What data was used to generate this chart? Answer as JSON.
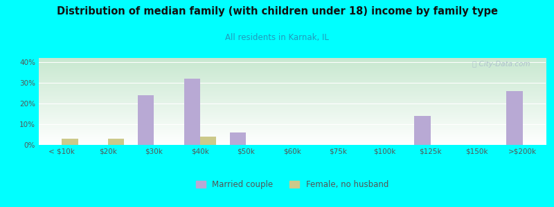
{
  "title": "Distribution of median family (with children under 18) income by family type",
  "subtitle": "All residents in Karnak, IL",
  "categories": [
    "< $10k",
    "$20k",
    "$30k",
    "$40k",
    "$50k",
    "$60k",
    "$75k",
    "$100k",
    "$125k",
    "$150k",
    ">$200k"
  ],
  "married_couple": [
    0,
    0,
    24,
    32,
    6,
    0,
    0,
    0,
    14,
    0,
    26
  ],
  "female_no_husband": [
    3,
    3,
    0,
    4,
    0,
    0,
    0,
    0,
    0,
    0,
    0
  ],
  "married_color": "#b8a9d4",
  "female_color": "#ccc98a",
  "bg_color": "#00ffff",
  "title_color": "#111111",
  "subtitle_color": "#2299bb",
  "ylabel_ticks": [
    "0%",
    "10%",
    "20%",
    "30%",
    "40%"
  ],
  "yticks": [
    0,
    10,
    20,
    30,
    40
  ],
  "ylim": [
    0,
    42
  ],
  "bar_width": 0.35,
  "watermark": "ⓘ City-Data.com",
  "legend_married": "Married couple",
  "legend_female": "Female, no husband",
  "title_fontsize": 10.5,
  "subtitle_fontsize": 8.5,
  "tick_fontsize": 7.5
}
